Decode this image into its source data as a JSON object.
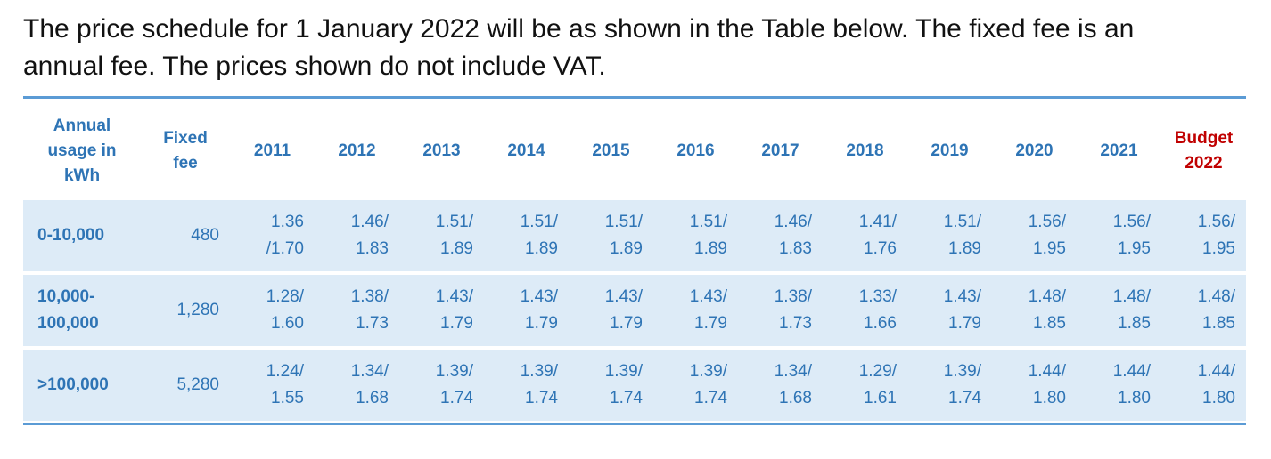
{
  "intro": {
    "line1": "The price schedule for 1 January 2022 will be as shown in the Table below.  The fixed fee is an",
    "line2": "annual fee.  The prices shown do not include VAT."
  },
  "table": {
    "header_usage": [
      "Annual",
      "usage in",
      "kWh"
    ],
    "header_fee": [
      "Fixed",
      "fee"
    ],
    "years": [
      "2011",
      "2012",
      "2013",
      "2014",
      "2015",
      "2016",
      "2017",
      "2018",
      "2019",
      "2020",
      "2021"
    ],
    "header_budget": [
      "Budget",
      "2022"
    ],
    "rows": [
      {
        "usage": "0-10,000",
        "fee": "480",
        "prices": [
          [
            "1.36",
            "/1.70"
          ],
          [
            "1.46/",
            "1.83"
          ],
          [
            "1.51/",
            "1.89"
          ],
          [
            "1.51/",
            "1.89"
          ],
          [
            "1.51/",
            "1.89"
          ],
          [
            "1.51/",
            "1.89"
          ],
          [
            "1.46/",
            "1.83"
          ],
          [
            "1.41/",
            "1.76"
          ],
          [
            "1.51/",
            "1.89"
          ],
          [
            "1.56/",
            "1.95"
          ],
          [
            "1.56/",
            "1.95"
          ],
          [
            "1.56/",
            "1.95"
          ]
        ]
      },
      {
        "usage": [
          "10,000-",
          "100,000"
        ],
        "fee": "1,280",
        "prices": [
          [
            "1.28/",
            "1.60"
          ],
          [
            "1.38/",
            "1.73"
          ],
          [
            "1.43/",
            "1.79"
          ],
          [
            "1.43/",
            "1.79"
          ],
          [
            "1.43/",
            "1.79"
          ],
          [
            "1.43/",
            "1.79"
          ],
          [
            "1.38/",
            "1.73"
          ],
          [
            "1.33/",
            "1.66"
          ],
          [
            "1.43/",
            "1.79"
          ],
          [
            "1.48/",
            "1.85"
          ],
          [
            "1.48/",
            "1.85"
          ],
          [
            "1.48/",
            "1.85"
          ]
        ]
      },
      {
        "usage": ">100,000",
        "fee": "5,280",
        "prices": [
          [
            "1.24/",
            "1.55"
          ],
          [
            "1.34/",
            "1.68"
          ],
          [
            "1.39/",
            "1.74"
          ],
          [
            "1.39/",
            "1.74"
          ],
          [
            "1.39/",
            "1.74"
          ],
          [
            "1.39/",
            "1.74"
          ],
          [
            "1.34/",
            "1.68"
          ],
          [
            "1.29/",
            "1.61"
          ],
          [
            "1.39/",
            "1.74"
          ],
          [
            "1.44/",
            "1.80"
          ],
          [
            "1.44/",
            "1.80"
          ],
          [
            "1.44/",
            "1.80"
          ]
        ]
      }
    ]
  },
  "colors": {
    "text_blue": "#2e74b5",
    "budget_red": "#c00000",
    "row_shade": "#ddebf7",
    "rule_blue": "#5b9bd5"
  }
}
